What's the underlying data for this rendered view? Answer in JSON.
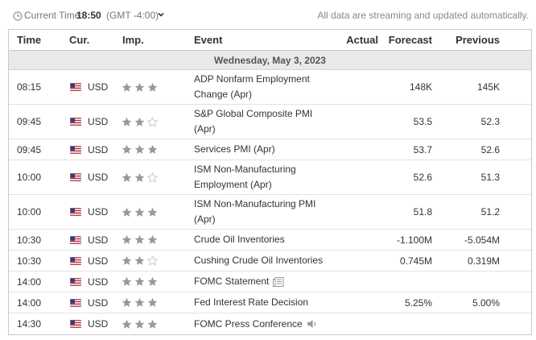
{
  "topbar": {
    "current_time_label": "Current Time:",
    "time": "18:50",
    "timezone": "(GMT -4:00)",
    "notice": "All data are streaming and updated automatically."
  },
  "headers": {
    "time": "Time",
    "currency": "Cur.",
    "importance": "Imp.",
    "event": "Event",
    "actual": "Actual",
    "forecast": "Forecast",
    "previous": "Previous"
  },
  "day_label": "Wednesday, May 3, 2023",
  "colors": {
    "star_filled": "#999999",
    "star_empty": "#c8c8c8",
    "day_row_bg": "#e9e9e9",
    "border": "#c9c9c9"
  },
  "rows": [
    {
      "time": "08:15",
      "currency": "USD",
      "stars": 3,
      "event_line1": "ADP Nonfarm Employment",
      "event_line2": "Change (Apr)",
      "icon": "",
      "actual": "",
      "forecast": "148K",
      "previous": "145K",
      "tall": true
    },
    {
      "time": "09:45",
      "currency": "USD",
      "stars": 2,
      "event_line1": "S&P Global Composite PMI",
      "event_line2": "(Apr)",
      "icon": "",
      "actual": "",
      "forecast": "53.5",
      "previous": "52.3",
      "tall": true
    },
    {
      "time": "09:45",
      "currency": "USD",
      "stars": 3,
      "event_line1": "Services PMI (Apr)",
      "event_line2": "",
      "icon": "",
      "actual": "",
      "forecast": "53.7",
      "previous": "52.6",
      "tall": false
    },
    {
      "time": "10:00",
      "currency": "USD",
      "stars": 2,
      "event_line1": "ISM Non-Manufacturing",
      "event_line2": "Employment (Apr)",
      "icon": "",
      "actual": "",
      "forecast": "52.6",
      "previous": "51.3",
      "tall": true
    },
    {
      "time": "10:00",
      "currency": "USD",
      "stars": 3,
      "event_line1": "ISM Non-Manufacturing PMI",
      "event_line2": "(Apr)",
      "icon": "",
      "actual": "",
      "forecast": "51.8",
      "previous": "51.2",
      "tall": true
    },
    {
      "time": "10:30",
      "currency": "USD",
      "stars": 3,
      "event_line1": "Crude Oil Inventories",
      "event_line2": "",
      "icon": "",
      "actual": "",
      "forecast": "-1.100M",
      "previous": "-5.054M",
      "tall": false
    },
    {
      "time": "10:30",
      "currency": "USD",
      "stars": 2,
      "event_line1": "Cushing Crude Oil Inventories",
      "event_line2": "",
      "icon": "",
      "actual": "",
      "forecast": "0.745M",
      "previous": "0.319M",
      "tall": false
    },
    {
      "time": "14:00",
      "currency": "USD",
      "stars": 3,
      "event_line1": "FOMC Statement",
      "event_line2": "",
      "icon": "document-icon",
      "actual": "",
      "forecast": "",
      "previous": "",
      "tall": false
    },
    {
      "time": "14:00",
      "currency": "USD",
      "stars": 3,
      "event_line1": "Fed Interest Rate Decision",
      "event_line2": "",
      "icon": "",
      "actual": "",
      "forecast": "5.25%",
      "previous": "5.00%",
      "tall": false
    },
    {
      "time": "14:30",
      "currency": "USD",
      "stars": 3,
      "event_line1": "FOMC Press Conference",
      "event_line2": "",
      "icon": "speaker-icon",
      "actual": "",
      "forecast": "",
      "previous": "",
      "tall": false
    }
  ]
}
